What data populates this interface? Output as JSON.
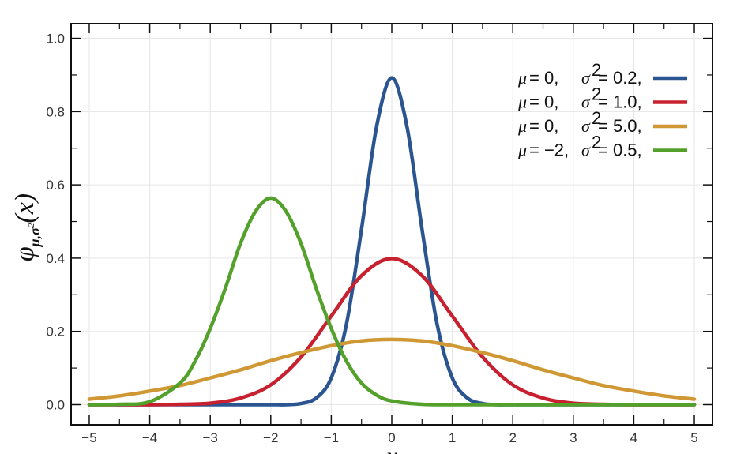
{
  "chart_data": {
    "type": "line",
    "title": "",
    "xlabel": "x",
    "ylabel_parts": {
      "main": "φ",
      "sub": "μ,σ",
      "sub_sup": "2",
      "arg": "(x)"
    },
    "xlim": [
      -5.3,
      5.3
    ],
    "ylim": [
      -0.055,
      1.04
    ],
    "x_ticks": [
      -5,
      -4,
      -3,
      -2,
      -1,
      0,
      1,
      2,
      3,
      4,
      5
    ],
    "x_tick_labels": [
      "−5",
      "−4",
      "−3",
      "−2",
      "−1",
      "0",
      "1",
      "2",
      "3",
      "4",
      "5"
    ],
    "y_ticks": [
      0.0,
      0.2,
      0.4,
      0.6,
      0.8,
      1.0
    ],
    "y_tick_labels": [
      "0.0",
      "0.2",
      "0.4",
      "0.6",
      "0.8",
      "1.0"
    ],
    "grid": true,
    "legend_position": "top-right",
    "series": [
      {
        "mu": "0",
        "sigma2": "0.2",
        "color": "#2b5591",
        "legend": {
          "mu_label": "μ",
          "mu_value": "= 0,",
          "sigma_label": "σ",
          "sigma_sup": "2",
          "sigma_value": "= 0.2,"
        },
        "x": [
          -5,
          -4.5,
          -4,
          -3.5,
          -3,
          -2.5,
          -2,
          -1.75,
          -1.5,
          -1.25,
          -1,
          -0.75,
          -0.5,
          -0.25,
          0,
          0.25,
          0.5,
          0.75,
          1,
          1.25,
          1.5,
          1.75,
          2,
          2.5,
          3,
          3.5,
          4,
          4.5,
          5
        ],
        "y": [
          0,
          0,
          0,
          0,
          0,
          0,
          0,
          0,
          0.003,
          0.018,
          0.073,
          0.219,
          0.479,
          0.76,
          0.892,
          0.76,
          0.479,
          0.219,
          0.073,
          0.018,
          0.003,
          0,
          0,
          0,
          0,
          0,
          0,
          0,
          0
        ]
      },
      {
        "mu": "0",
        "sigma2": "1.0",
        "color": "#c8202e",
        "legend": {
          "mu_label": "μ",
          "mu_value": "= 0,",
          "sigma_label": "σ",
          "sigma_sup": "2",
          "sigma_value": "= 1.0,"
        },
        "x": [
          -5,
          -4.5,
          -4,
          -3.5,
          -3,
          -2.5,
          -2,
          -1.5,
          -1,
          -0.5,
          0,
          0.5,
          1,
          1.5,
          2,
          2.5,
          3,
          3.5,
          4,
          4.5,
          5
        ],
        "y": [
          0,
          0,
          0,
          0.001,
          0.004,
          0.018,
          0.054,
          0.13,
          0.242,
          0.352,
          0.399,
          0.352,
          0.242,
          0.13,
          0.054,
          0.018,
          0.004,
          0.001,
          0,
          0,
          0
        ]
      },
      {
        "mu": "0",
        "sigma2": "5.0",
        "color": "#d09834",
        "legend": {
          "mu_label": "μ",
          "mu_value": "= 0,",
          "sigma_label": "σ",
          "sigma_sup": "2",
          "sigma_value": "= 5.0,"
        },
        "x": [
          -5,
          -4.5,
          -4,
          -3.5,
          -3,
          -2.5,
          -2,
          -1.5,
          -1,
          -0.5,
          0,
          0.5,
          1,
          1.5,
          2,
          2.5,
          3,
          3.5,
          4,
          4.5,
          5
        ],
        "y": [
          0.015,
          0.024,
          0.037,
          0.052,
          0.073,
          0.095,
          0.12,
          0.142,
          0.161,
          0.174,
          0.178,
          0.174,
          0.161,
          0.142,
          0.12,
          0.095,
          0.073,
          0.052,
          0.037,
          0.024,
          0.015
        ]
      },
      {
        "mu": "−2",
        "sigma2": "0.5",
        "color": "#53a02b",
        "legend": {
          "mu_label": "μ",
          "mu_value": "= −2,",
          "sigma_label": "σ",
          "sigma_sup": "2",
          "sigma_value": "= 0.5,"
        },
        "x": [
          -5,
          -4.5,
          -4,
          -3.5,
          -3.25,
          -3,
          -2.75,
          -2.5,
          -2.25,
          -2,
          -1.75,
          -1.5,
          -1.25,
          -1,
          -0.75,
          -0.5,
          -0.25,
          0,
          0.5,
          1,
          1.5,
          2,
          3,
          4,
          5
        ],
        "y": [
          0,
          0.001,
          0.008,
          0.059,
          0.119,
          0.208,
          0.318,
          0.44,
          0.528,
          0.564,
          0.528,
          0.44,
          0.318,
          0.208,
          0.119,
          0.059,
          0.026,
          0.01,
          0.001,
          0,
          0,
          0,
          0,
          0,
          0
        ]
      }
    ]
  }
}
